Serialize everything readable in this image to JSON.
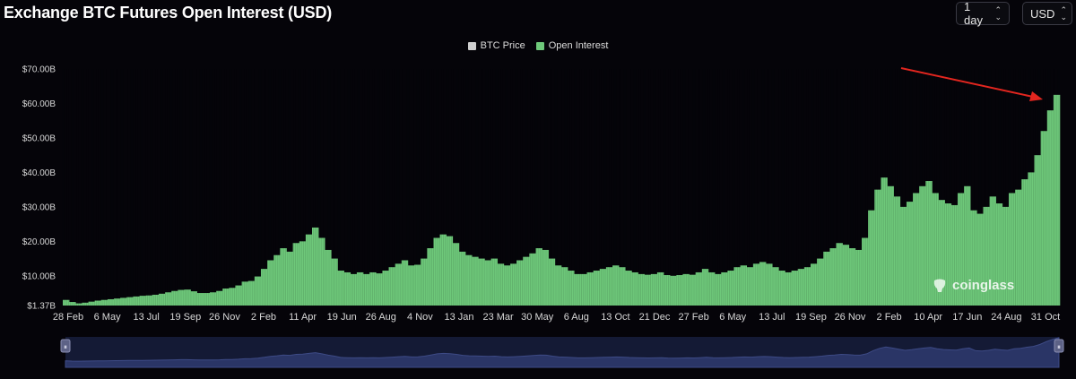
{
  "header": {
    "title": "Exchange BTC Futures Open Interest (USD)",
    "interval_select": "1 day",
    "currency_select": "USD"
  },
  "legend": [
    {
      "label": "BTC Price",
      "color": "#cfcfcf"
    },
    {
      "label": "Open Interest",
      "color": "#6ec97a"
    }
  ],
  "watermark": "coinglass",
  "chart_data": {
    "type": "bar",
    "title": "Exchange BTC Futures Open Interest (USD)",
    "ylabel": "",
    "xlabel": "",
    "ylim": [
      1.37,
      70
    ],
    "y_ticks": [
      "$1.37B",
      "$10.00B",
      "$20.00B",
      "$30.00B",
      "$40.00B",
      "$50.00B",
      "$60.00B",
      "$70.00B"
    ],
    "y_tick_values": [
      1.37,
      10,
      20,
      30,
      40,
      50,
      60,
      70
    ],
    "x_ticks": [
      "28 Feb",
      "6 May",
      "13 Jul",
      "19 Sep",
      "26 Nov",
      "2 Feb",
      "11 Apr",
      "19 Jun",
      "26 Aug",
      "4 Nov",
      "13 Jan",
      "23 Mar",
      "30 May",
      "6 Aug",
      "13 Oct",
      "21 Dec",
      "27 Feb",
      "6 May",
      "13 Jul",
      "19 Sep",
      "26 Nov",
      "2 Feb",
      "10 Apr",
      "17 Jun",
      "24 Aug",
      "31 Oct"
    ],
    "grid": false,
    "legend_position": "top-center",
    "series": [
      {
        "name": "Open Interest",
        "unit": "USD billions",
        "color": "#6ec97a",
        "values": [
          3.0,
          2.4,
          2.0,
          2.2,
          2.5,
          2.8,
          3.0,
          3.2,
          3.4,
          3.6,
          3.8,
          4.0,
          4.2,
          4.3,
          4.5,
          4.8,
          5.2,
          5.6,
          5.9,
          6.0,
          5.5,
          5.0,
          5.0,
          5.2,
          5.6,
          6.3,
          6.5,
          7.2,
          8.3,
          8.5,
          9.8,
          12.0,
          14.5,
          16.0,
          18.0,
          17.0,
          19.5,
          20.0,
          22.0,
          24.0,
          21.0,
          17.5,
          15.0,
          11.5,
          11.0,
          10.5,
          11.0,
          10.5,
          11.0,
          10.7,
          11.5,
          12.5,
          13.5,
          14.5,
          13.0,
          13.2,
          15.0,
          18.0,
          21.0,
          22.0,
          21.5,
          19.5,
          17.0,
          16.0,
          15.5,
          15.0,
          14.5,
          15.0,
          13.5,
          13.0,
          13.5,
          14.5,
          15.5,
          16.5,
          18.0,
          17.5,
          15.0,
          13.0,
          12.5,
          11.5,
          10.5,
          10.5,
          11.0,
          11.5,
          12.0,
          12.5,
          13.0,
          12.5,
          11.5,
          11.0,
          10.5,
          10.3,
          10.5,
          11.0,
          10.2,
          10.0,
          10.2,
          10.5,
          10.3,
          11.0,
          12.0,
          11.0,
          10.5,
          11.0,
          11.5,
          12.5,
          13.0,
          12.5,
          13.5,
          14.0,
          13.5,
          12.5,
          11.5,
          11.0,
          11.5,
          12.0,
          12.5,
          13.5,
          15.0,
          17.0,
          18.0,
          19.5,
          19.0,
          18.0,
          17.5,
          21.0,
          29.0,
          35.0,
          38.5,
          36.0,
          33.0,
          30.0,
          31.5,
          34.0,
          36.0,
          37.5,
          34.0,
          32.0,
          31.0,
          30.5,
          34.0,
          36.0,
          29.0,
          28.0,
          30.0,
          33.0,
          31.0,
          30.0,
          34.0,
          35.0,
          38.0,
          40.0,
          45.0,
          52.0,
          58.0,
          62.5
        ]
      }
    ]
  },
  "navigator": {
    "handle_left": "⏸",
    "handle_right": "⏸"
  }
}
